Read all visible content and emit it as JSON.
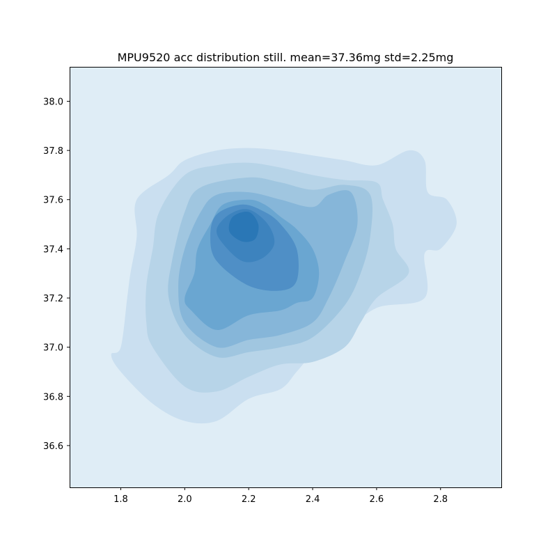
{
  "chart_data": {
    "type": "heatmap",
    "subtype": "kde-filled-contour",
    "title": "MPU9520 acc distribution still. mean=37.36mg std=2.25mg",
    "xlabel": "",
    "ylabel": "",
    "xlim": [
      1.64,
      2.99
    ],
    "ylim": [
      36.43,
      38.14
    ],
    "xticks": [
      "1.8",
      "2.0",
      "2.2",
      "2.4",
      "2.6",
      "2.8"
    ],
    "yticks": [
      "36.6",
      "36.8",
      "37.0",
      "37.2",
      "37.4",
      "37.6",
      "37.8",
      "38.0"
    ],
    "grid": false,
    "legend": "none",
    "background_color": "#dfedf6",
    "levels": [
      {
        "name": "level-1",
        "color": "#cadff0",
        "polygon": [
          [
            2.0,
            36.7
          ],
          [
            1.9,
            36.77
          ],
          [
            1.8,
            36.9
          ],
          [
            1.77,
            36.97
          ],
          [
            1.8,
            37.0
          ],
          [
            1.82,
            37.2
          ],
          [
            1.83,
            37.3
          ],
          [
            1.85,
            37.45
          ],
          [
            1.85,
            37.6
          ],
          [
            1.95,
            37.7
          ],
          [
            2.0,
            37.76
          ],
          [
            2.1,
            37.8
          ],
          [
            2.2,
            37.81
          ],
          [
            2.3,
            37.8
          ],
          [
            2.4,
            37.78
          ],
          [
            2.5,
            37.76
          ],
          [
            2.6,
            37.74
          ],
          [
            2.7,
            37.8
          ],
          [
            2.75,
            37.76
          ],
          [
            2.76,
            37.63
          ],
          [
            2.82,
            37.6
          ],
          [
            2.85,
            37.5
          ],
          [
            2.8,
            37.4
          ],
          [
            2.75,
            37.38
          ],
          [
            2.75,
            37.2
          ],
          [
            2.6,
            37.16
          ],
          [
            2.5,
            37.06
          ],
          [
            2.4,
            36.97
          ],
          [
            2.35,
            36.9
          ],
          [
            2.3,
            36.83
          ],
          [
            2.2,
            36.79
          ],
          [
            2.1,
            36.7
          ]
        ]
      },
      {
        "name": "level-2",
        "color": "#b7d4e8",
        "polygon": [
          [
            2.0,
            36.84
          ],
          [
            1.9,
            37.0
          ],
          [
            1.88,
            37.1
          ],
          [
            1.88,
            37.25
          ],
          [
            1.9,
            37.4
          ],
          [
            1.92,
            37.55
          ],
          [
            2.0,
            37.7
          ],
          [
            2.1,
            37.74
          ],
          [
            2.2,
            37.75
          ],
          [
            2.3,
            37.73
          ],
          [
            2.4,
            37.7
          ],
          [
            2.5,
            37.68
          ],
          [
            2.6,
            37.67
          ],
          [
            2.62,
            37.6
          ],
          [
            2.65,
            37.5
          ],
          [
            2.66,
            37.4
          ],
          [
            2.7,
            37.3
          ],
          [
            2.6,
            37.2
          ],
          [
            2.55,
            37.1
          ],
          [
            2.5,
            37.0
          ],
          [
            2.4,
            36.94
          ],
          [
            2.3,
            36.93
          ],
          [
            2.2,
            36.88
          ],
          [
            2.1,
            36.82
          ]
        ]
      },
      {
        "name": "level-3",
        "color": "#a0c6e0",
        "polygon": [
          [
            2.1,
            36.96
          ],
          [
            2.0,
            37.05
          ],
          [
            1.95,
            37.2
          ],
          [
            1.96,
            37.35
          ],
          [
            2.0,
            37.55
          ],
          [
            2.05,
            37.65
          ],
          [
            2.2,
            37.69
          ],
          [
            2.3,
            37.67
          ],
          [
            2.4,
            37.64
          ],
          [
            2.5,
            37.66
          ],
          [
            2.58,
            37.62
          ],
          [
            2.58,
            37.45
          ],
          [
            2.55,
            37.3
          ],
          [
            2.5,
            37.17
          ],
          [
            2.4,
            37.04
          ],
          [
            2.3,
            37.0
          ],
          [
            2.2,
            36.98
          ]
        ]
      },
      {
        "name": "level-4",
        "color": "#86b6d9",
        "polygon": [
          [
            2.1,
            37.0
          ],
          [
            2.0,
            37.1
          ],
          [
            1.98,
            37.25
          ],
          [
            2.0,
            37.4
          ],
          [
            2.05,
            37.55
          ],
          [
            2.1,
            37.62
          ],
          [
            2.2,
            37.63
          ],
          [
            2.3,
            37.6
          ],
          [
            2.4,
            37.57
          ],
          [
            2.45,
            37.62
          ],
          [
            2.52,
            37.63
          ],
          [
            2.54,
            37.5
          ],
          [
            2.5,
            37.35
          ],
          [
            2.45,
            37.2
          ],
          [
            2.4,
            37.1
          ],
          [
            2.3,
            37.05
          ],
          [
            2.2,
            37.03
          ]
        ]
      },
      {
        "name": "level-5",
        "color": "#6aa6d1",
        "polygon": [
          [
            2.1,
            37.07
          ],
          [
            2.02,
            37.15
          ],
          [
            2.0,
            37.2
          ],
          [
            2.03,
            37.3
          ],
          [
            2.04,
            37.4
          ],
          [
            2.08,
            37.5
          ],
          [
            2.12,
            37.58
          ],
          [
            2.2,
            37.6
          ],
          [
            2.25,
            37.58
          ],
          [
            2.3,
            37.53
          ],
          [
            2.35,
            37.48
          ],
          [
            2.4,
            37.4
          ],
          [
            2.42,
            37.3
          ],
          [
            2.4,
            37.2
          ],
          [
            2.35,
            37.18
          ],
          [
            2.3,
            37.15
          ],
          [
            2.2,
            37.13
          ]
        ]
      },
      {
        "name": "level-6",
        "color": "#4f8fc6",
        "polygon": [
          [
            2.2,
            37.25
          ],
          [
            2.1,
            37.35
          ],
          [
            2.08,
            37.45
          ],
          [
            2.1,
            37.54
          ],
          [
            2.18,
            37.58
          ],
          [
            2.25,
            37.55
          ],
          [
            2.3,
            37.5
          ],
          [
            2.35,
            37.4
          ],
          [
            2.35,
            37.27
          ],
          [
            2.3,
            37.23
          ]
        ]
      },
      {
        "name": "level-7",
        "color": "#3d83be",
        "polygon": [
          [
            2.18,
            37.35
          ],
          [
            2.12,
            37.42
          ],
          [
            2.1,
            37.48
          ],
          [
            2.14,
            37.54
          ],
          [
            2.2,
            37.56
          ],
          [
            2.26,
            37.5
          ],
          [
            2.28,
            37.42
          ],
          [
            2.24,
            37.36
          ]
        ]
      },
      {
        "name": "level-8",
        "color": "#2a77b6",
        "polygon": [
          [
            2.18,
            37.43
          ],
          [
            2.14,
            37.47
          ],
          [
            2.15,
            37.53
          ],
          [
            2.2,
            37.55
          ],
          [
            2.23,
            37.5
          ],
          [
            2.22,
            37.44
          ]
        ]
      }
    ]
  }
}
